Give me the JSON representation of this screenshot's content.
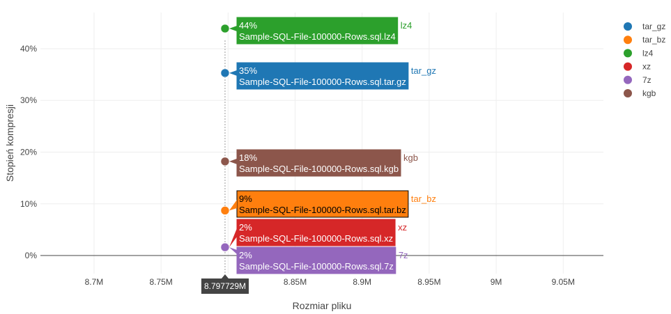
{
  "chart_data": {
    "type": "scatter",
    "xlabel": "Rozmiar pliku",
    "ylabel": "Stopień kompresji",
    "xlim": [
      8.66,
      9.08
    ],
    "ylim": [
      -3.5,
      47
    ],
    "x_tick_labels": [
      "8.7M",
      "8.75M",
      "8.8M",
      "8.85M",
      "8.9M",
      "8.95M",
      "9M",
      "9.05M"
    ],
    "x_tick_values": [
      8.7,
      8.75,
      8.8,
      8.85,
      8.9,
      8.95,
      9.0,
      9.05
    ],
    "y_tick_labels": [
      "0%",
      "10%",
      "20%",
      "30%",
      "40%"
    ],
    "y_tick_values": [
      0,
      10,
      20,
      30,
      40
    ],
    "grid": true,
    "legend_position": "top-right",
    "spike_label": "8.797729M",
    "series": [
      {
        "name": "tar_gz",
        "color": "#1f77b4",
        "x": 8.797729,
        "y": 35.3,
        "pct": "35%",
        "file": "Sample-SQL-File-100000-Rows.sql.tar.gz",
        "text_color": "#ffffff"
      },
      {
        "name": "tar_bz",
        "color": "#ff7f0e",
        "x": 8.797729,
        "y": 8.7,
        "pct": "9%",
        "file": "Sample-SQL-File-100000-Rows.sql.tar.bz",
        "text_color": "#000000"
      },
      {
        "name": "lz4",
        "color": "#2ca02c",
        "x": 8.797729,
        "y": 43.9,
        "pct": "44%",
        "file": "Sample-SQL-File-100000-Rows.sql.lz4",
        "text_color": "#ffffff"
      },
      {
        "name": "xz",
        "color": "#d62728",
        "x": 8.797729,
        "y": 1.6,
        "pct": "2%",
        "file": "Sample-SQL-File-100000-Rows.sql.xz",
        "text_color": "#ffffff"
      },
      {
        "name": "7z",
        "color": "#9467bd",
        "x": 8.797729,
        "y": 1.6,
        "pct": "2%",
        "file": "Sample-SQL-File-100000-Rows.sql.7z",
        "text_color": "#ffffff"
      },
      {
        "name": "kgb",
        "color": "#8c564b",
        "x": 8.797729,
        "y": 18.2,
        "pct": "18%",
        "file": "Sample-SQL-File-100000-Rows.sql.kgb",
        "text_color": "#ffffff"
      }
    ]
  }
}
